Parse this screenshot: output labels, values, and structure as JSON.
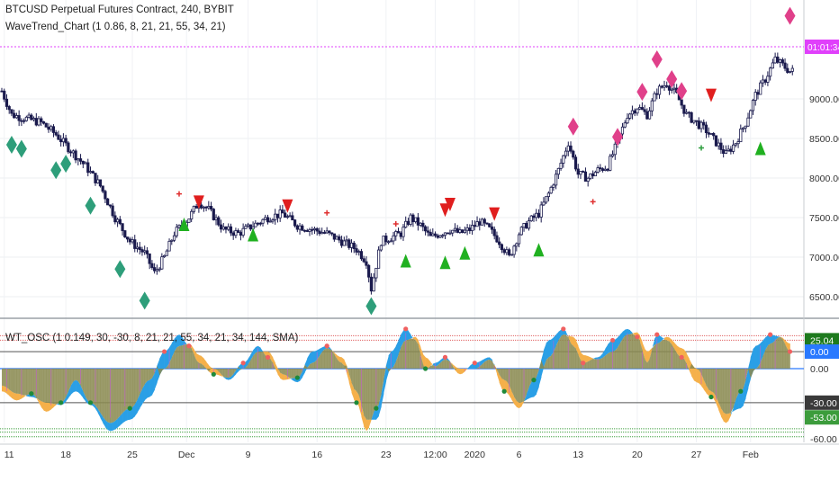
{
  "header": {
    "symbol_title": "BTCUSD Perpetual Futures Contract, 240, BYBIT",
    "indicator_1": "WaveTrend_Chart (1 0.86, 8, 21, 21, 55, 34, 21)",
    "indicator_2": "WT_OSC (1 0.149, 30, -30, 8, 21, 21, 55, 34, 21, 34, 144, SMA)"
  },
  "colors": {
    "candle": "#1a1a4d",
    "current_price_line": "#e040fb",
    "sell_diamond": "#e0408a",
    "buy_diamond": "#2e9e7a",
    "sell_triangle": "#e01e1e",
    "buy_triangle": "#20b020",
    "osc_blue": "#2a9fe6",
    "osc_orange": "#f5b04a",
    "osc_olive": "#8a8a50",
    "upper_band": "#e06060",
    "lower_band": "#40a040",
    "positive_tag": "#1e7a1e",
    "zero_tag": "#2979ff",
    "neutral_tag": "#555555",
    "neg30_tag": "#3a3a3a",
    "neg53_tag": "#3c9c3c"
  },
  "price_axis": {
    "current_price_tag": "01:01:34",
    "ticks": [
      "9000.00",
      "8500.00",
      "8000.00",
      "7500.00",
      "7000.00",
      "6500.00"
    ]
  },
  "osc_axis": {
    "tags": [
      "25.04",
      "0.00",
      "0.00",
      "-30.00",
      "-53.00",
      "-60.00"
    ]
  },
  "time_axis": {
    "labels": [
      "11",
      "18",
      "25",
      "Dec",
      "9",
      "16",
      "23",
      "12:00",
      "2020",
      "6",
      "13",
      "20",
      "27",
      "Feb"
    ]
  },
  "chart_data": [
    {
      "type": "candlestick",
      "title": "BTCUSD Perpetual Futures Contract, 240, BYBIT",
      "ylim": [
        6250,
        10250
      ],
      "x_categories": [
        "11",
        "18",
        "25",
        "Dec",
        "9",
        "16",
        "23",
        "12:00",
        "2020",
        "6",
        "13",
        "20",
        "27",
        "Feb"
      ],
      "close_path": [
        [
          0,
          9100
        ],
        [
          2,
          8800
        ],
        [
          5,
          8750
        ],
        [
          8,
          8700
        ],
        [
          11,
          8550
        ],
        [
          14,
          8350
        ],
        [
          17,
          8150
        ],
        [
          20,
          7900
        ],
        [
          23,
          7500
        ],
        [
          26,
          7200
        ],
        [
          29,
          7050
        ],
        [
          31,
          6800
        ],
        [
          33,
          7000
        ],
        [
          35,
          7300
        ],
        [
          38,
          7500
        ],
        [
          40,
          7700
        ],
        [
          42,
          7600
        ],
        [
          45,
          7350
        ],
        [
          48,
          7300
        ],
        [
          51,
          7400
        ],
        [
          54,
          7500
        ],
        [
          57,
          7550
        ],
        [
          60,
          7400
        ],
        [
          63,
          7350
        ],
        [
          66,
          7300
        ],
        [
          69,
          7200
        ],
        [
          72,
          7100
        ],
        [
          74,
          6950
        ],
        [
          75,
          6600
        ],
        [
          76,
          6900
        ],
        [
          77,
          7200
        ],
        [
          79,
          7250
        ],
        [
          81,
          7300
        ],
        [
          83,
          7500
        ],
        [
          85,
          7400
        ],
        [
          87,
          7250
        ],
        [
          89,
          7300
        ],
        [
          91,
          7350
        ],
        [
          93,
          7300
        ],
        [
          95,
          7350
        ],
        [
          97,
          7450
        ],
        [
          99,
          7350
        ],
        [
          101,
          7200
        ],
        [
          103,
          7000
        ],
        [
          105,
          7300
        ],
        [
          107,
          7450
        ],
        [
          109,
          7550
        ],
        [
          111,
          7800
        ],
        [
          113,
          8100
        ],
        [
          115,
          8450
        ],
        [
          117,
          8050
        ],
        [
          119,
          8000
        ],
        [
          121,
          8100
        ],
        [
          123,
          8150
        ],
        [
          125,
          8450
        ],
        [
          127,
          8800
        ],
        [
          129,
          8900
        ],
        [
          131,
          8800
        ],
        [
          133,
          9100
        ],
        [
          135,
          9200
        ],
        [
          137,
          9050
        ],
        [
          139,
          8800
        ],
        [
          141,
          8700
        ],
        [
          143,
          8600
        ],
        [
          145,
          8450
        ],
        [
          147,
          8300
        ],
        [
          149,
          8450
        ],
        [
          151,
          8700
        ],
        [
          153,
          9050
        ],
        [
          155,
          9250
        ],
        [
          157,
          9500
        ],
        [
          159,
          9400
        ],
        [
          160,
          9350
        ]
      ],
      "markers": [
        {
          "type": "buy-diamond",
          "x": 2,
          "y": 8420
        },
        {
          "type": "buy-diamond",
          "x": 4,
          "y": 8370
        },
        {
          "type": "buy-diamond",
          "x": 11,
          "y": 8100
        },
        {
          "type": "buy-diamond",
          "x": 13,
          "y": 8180
        },
        {
          "type": "buy-diamond",
          "x": 18,
          "y": 7650
        },
        {
          "type": "buy-diamond",
          "x": 24,
          "y": 6850
        },
        {
          "type": "buy-diamond",
          "x": 29,
          "y": 6450
        },
        {
          "type": "buy-diamond",
          "x": 75,
          "y": 6380
        },
        {
          "type": "sell-diamond",
          "x": 116,
          "y": 8650
        },
        {
          "type": "sell-diamond",
          "x": 125,
          "y": 8520
        },
        {
          "type": "sell-diamond",
          "x": 130,
          "y": 9090
        },
        {
          "type": "sell-diamond",
          "x": 133,
          "y": 9500
        },
        {
          "type": "sell-diamond",
          "x": 136,
          "y": 9250
        },
        {
          "type": "sell-diamond",
          "x": 138,
          "y": 9100
        },
        {
          "type": "sell-diamond",
          "x": 160,
          "y": 10050
        },
        {
          "type": "sell-triangle",
          "x": 40,
          "y": 7700
        },
        {
          "type": "sell-triangle",
          "x": 58,
          "y": 7650
        },
        {
          "type": "sell-triangle",
          "x": 90,
          "y": 7600
        },
        {
          "type": "sell-triangle",
          "x": 91,
          "y": 7670
        },
        {
          "type": "sell-triangle",
          "x": 100,
          "y": 7550
        },
        {
          "type": "sell-triangle",
          "x": 144,
          "y": 9050
        },
        {
          "type": "buy-triangle",
          "x": 37,
          "y": 7420
        },
        {
          "type": "buy-triangle",
          "x": 51,
          "y": 7290
        },
        {
          "type": "buy-triangle",
          "x": 82,
          "y": 6960
        },
        {
          "type": "buy-triangle",
          "x": 90,
          "y": 6940
        },
        {
          "type": "buy-triangle",
          "x": 94,
          "y": 7060
        },
        {
          "type": "buy-triangle",
          "x": 109,
          "y": 7100
        },
        {
          "type": "buy-triangle",
          "x": 154,
          "y": 8380
        },
        {
          "type": "cross",
          "x": 36,
          "y": 7800
        },
        {
          "type": "cross",
          "x": 66,
          "y": 7560
        },
        {
          "type": "cross",
          "x": 80,
          "y": 7420
        },
        {
          "type": "cross",
          "x": 120,
          "y": 7700
        },
        {
          "type": "cross",
          "x": 142,
          "y": 8380
        }
      ]
    },
    {
      "type": "area",
      "title": "WT_OSC (1 0.149, 30, -30, 8, 21, 21, 55, 34, 21, 34, 144, SMA)",
      "ylim": [
        -65,
        42
      ],
      "levels": [
        25.04,
        0,
        -30,
        -53,
        -60
      ],
      "series": [
        {
          "name": "wt",
          "points": [
            [
              0,
              -20
            ],
            [
              3,
              -28
            ],
            [
              6,
              -22
            ],
            [
              9,
              -38
            ],
            [
              12,
              -30
            ],
            [
              15,
              -10
            ],
            [
              18,
              -30
            ],
            [
              22,
              -48
            ],
            [
              26,
              -35
            ],
            [
              30,
              -10
            ],
            [
              33,
              15
            ],
            [
              36,
              30
            ],
            [
              38,
              20
            ],
            [
              40,
              5
            ],
            [
              43,
              -5
            ],
            [
              46,
              -8
            ],
            [
              49,
              5
            ],
            [
              52,
              20
            ],
            [
              54,
              10
            ],
            [
              57,
              -10
            ],
            [
              60,
              -8
            ],
            [
              63,
              15
            ],
            [
              66,
              20
            ],
            [
              69,
              5
            ],
            [
              72,
              -30
            ],
            [
              74,
              -55
            ],
            [
              76,
              -35
            ],
            [
              79,
              15
            ],
            [
              82,
              35
            ],
            [
              84,
              25
            ],
            [
              86,
              0
            ],
            [
              88,
              5
            ],
            [
              90,
              10
            ],
            [
              93,
              -5
            ],
            [
              96,
              5
            ],
            [
              99,
              10
            ],
            [
              102,
              -20
            ],
            [
              105,
              -35
            ],
            [
              108,
              -10
            ],
            [
              111,
              25
            ],
            [
              114,
              35
            ],
            [
              116,
              20
            ],
            [
              118,
              5
            ],
            [
              121,
              10
            ],
            [
              124,
              25
            ],
            [
              127,
              35
            ],
            [
              129,
              28
            ],
            [
              131,
              5
            ],
            [
              133,
              30
            ],
            [
              135,
              25
            ],
            [
              138,
              10
            ],
            [
              141,
              -12
            ],
            [
              144,
              -25
            ],
            [
              147,
              -48
            ],
            [
              150,
              -20
            ],
            [
              153,
              20
            ],
            [
              156,
              30
            ],
            [
              158,
              28
            ],
            [
              160,
              15
            ]
          ]
        },
        {
          "name": "wt-signal",
          "points": [
            [
              0,
              -15
            ],
            [
              3,
              -22
            ],
            [
              6,
              -25
            ],
            [
              9,
              -30
            ],
            [
              12,
              -32
            ],
            [
              15,
              -20
            ],
            [
              18,
              -32
            ],
            [
              22,
              -55
            ],
            [
              26,
              -45
            ],
            [
              30,
              -25
            ],
            [
              33,
              0
            ],
            [
              36,
              20
            ],
            [
              38,
              22
            ],
            [
              40,
              12
            ],
            [
              43,
              0
            ],
            [
              46,
              -10
            ],
            [
              49,
              0
            ],
            [
              52,
              15
            ],
            [
              54,
              15
            ],
            [
              57,
              -5
            ],
            [
              60,
              -12
            ],
            [
              63,
              5
            ],
            [
              66,
              18
            ],
            [
              69,
              10
            ],
            [
              72,
              -20
            ],
            [
              74,
              -45
            ],
            [
              76,
              -45
            ],
            [
              79,
              0
            ],
            [
              82,
              25
            ],
            [
              84,
              28
            ],
            [
              86,
              10
            ],
            [
              88,
              2
            ],
            [
              90,
              8
            ],
            [
              93,
              0
            ],
            [
              96,
              0
            ],
            [
              99,
              8
            ],
            [
              102,
              -10
            ],
            [
              105,
              -30
            ],
            [
              108,
              -25
            ],
            [
              111,
              10
            ],
            [
              114,
              30
            ],
            [
              116,
              28
            ],
            [
              118,
              12
            ],
            [
              121,
              8
            ],
            [
              124,
              15
            ],
            [
              127,
              30
            ],
            [
              129,
              32
            ],
            [
              131,
              15
            ],
            [
              133,
              22
            ],
            [
              135,
              28
            ],
            [
              138,
              18
            ],
            [
              141,
              0
            ],
            [
              144,
              -20
            ],
            [
              147,
              -40
            ],
            [
              150,
              -35
            ],
            [
              153,
              0
            ],
            [
              156,
              22
            ],
            [
              158,
              28
            ],
            [
              160,
              22
            ]
          ]
        }
      ]
    }
  ]
}
